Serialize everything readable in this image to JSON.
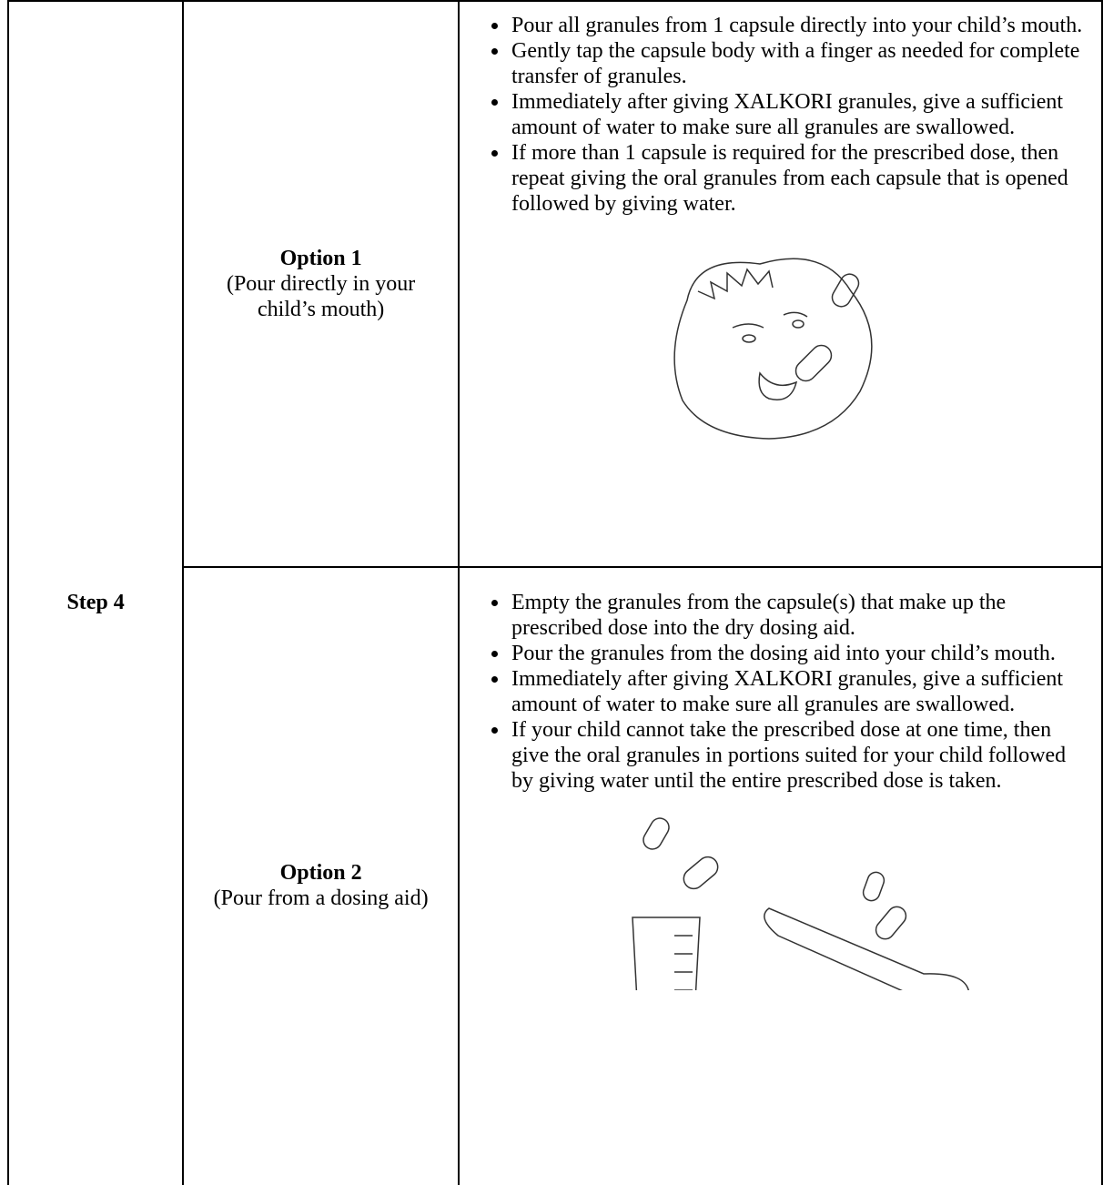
{
  "table": {
    "step": "Step 4",
    "rows": [
      {
        "option": "Option 1",
        "description": "(Pour directly in your child’s mouth)",
        "bullets": [
          "Pour all granules from 1 capsule directly into your child’s mouth.",
          "Gently tap the capsule body with a finger as needed for complete transfer of granules.",
          "Immediately after giving XALKORI granules, give a sufficient amount of water to make sure all granules are swallowed.",
          "If more than 1 capsule is required for the prescribed dose, then repeat giving the oral granules from each capsule that is opened followed by giving water."
        ]
      },
      {
        "option": "Option 2",
        "description": "(Pour from a dosing aid)",
        "bullets": [
          "Empty the granules from the capsule(s) that make up the prescribed dose into the dry dosing aid.",
          "Pour the granules from the dosing aid into your child’s mouth.",
          "Immediately after giving XALKORI granules, give a sufficient amount of water to make sure all granules are swallowed.",
          "If your child cannot take the prescribed dose at one time, then give the oral granules in portions suited for your child followed by giving water until the entire prescribed dose is taken."
        ]
      }
    ]
  }
}
